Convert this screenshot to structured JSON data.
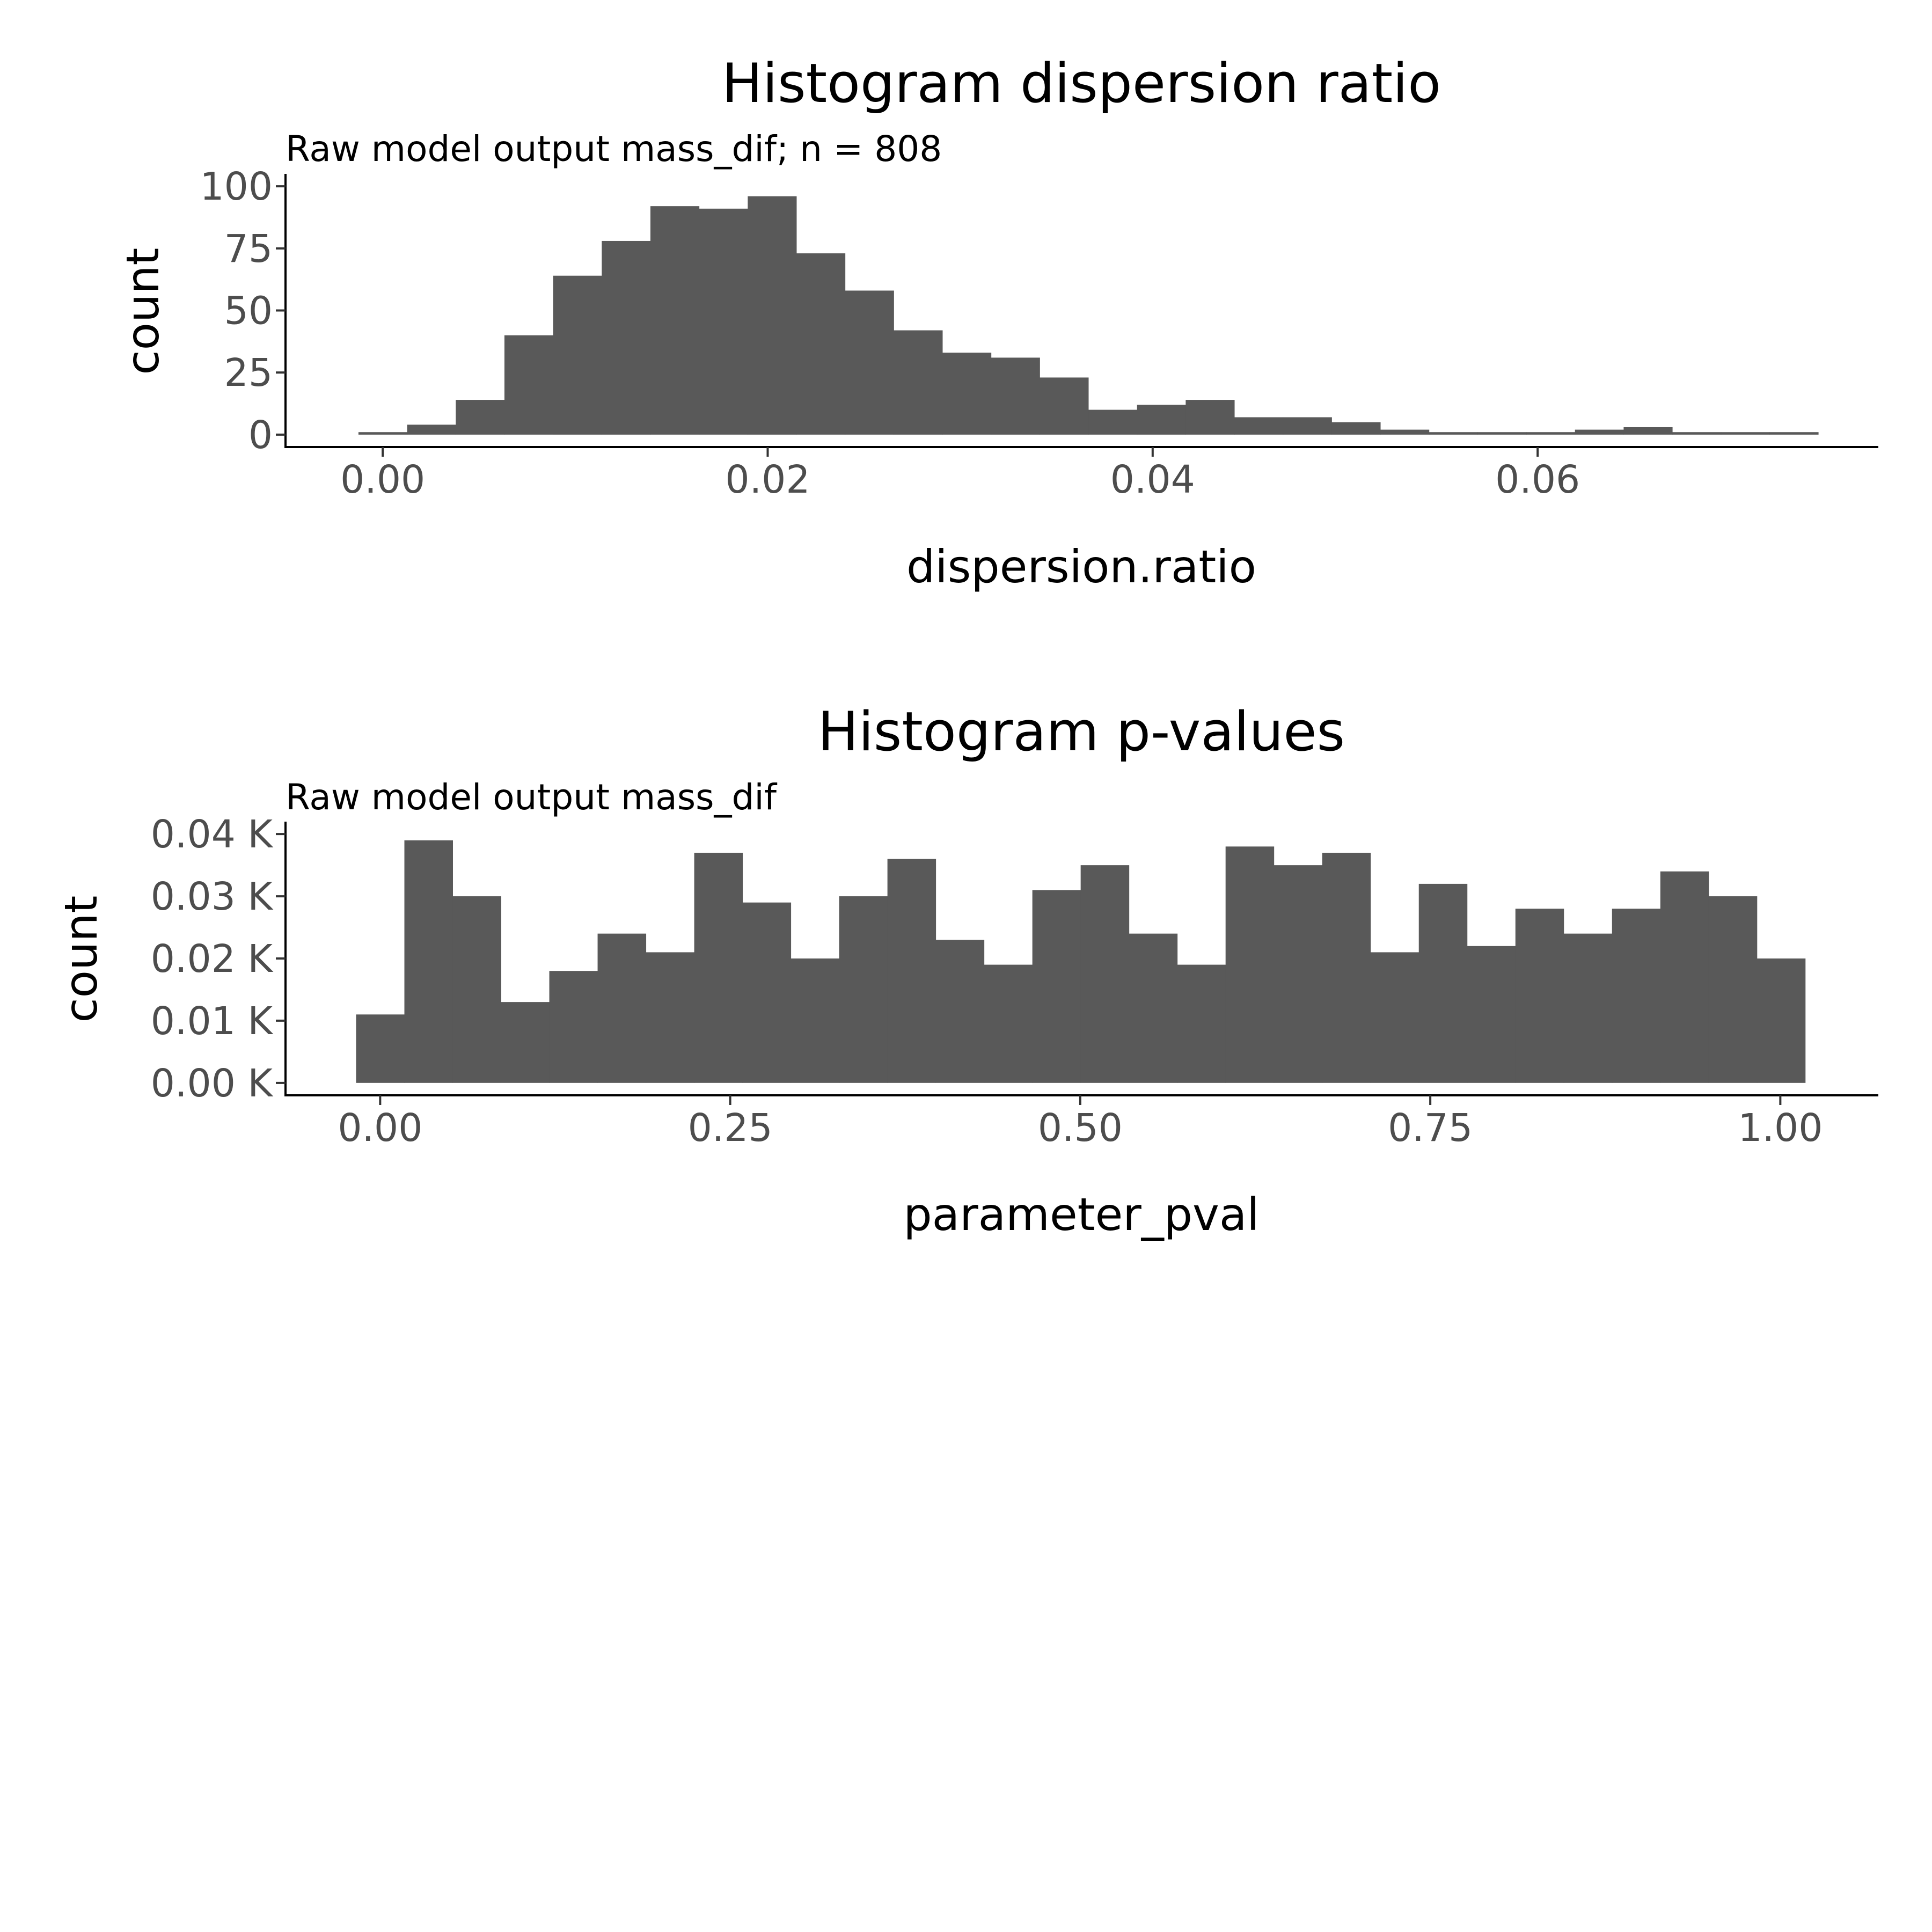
{
  "chart_data": [
    {
      "type": "bar",
      "title": "Histogram dispersion ratio",
      "subtitle": "Raw model output mass_dif; n = 808",
      "xlabel": "dispersion.ratio",
      "ylabel": "count",
      "xlim": [
        -0.00505,
        0.0777
      ],
      "ylim": [
        -5,
        105
      ],
      "xticks": [
        0,
        0.02,
        0.04,
        0.06
      ],
      "xtick_labels": [
        "0.00",
        "0.02",
        "0.04",
        "0.06"
      ],
      "yticks": [
        0,
        25,
        50,
        75,
        100
      ],
      "ytick_labels": [
        "0",
        "25",
        "50",
        "75",
        "100"
      ],
      "bin_start": -0.00126,
      "bin_width": 0.002528,
      "values": [
        1,
        4,
        14,
        40,
        64,
        78,
        92,
        91,
        96,
        73,
        58,
        42,
        33,
        31,
        23,
        10,
        12,
        14,
        7,
        7,
        5,
        2,
        1,
        1,
        1,
        2,
        3,
        1,
        1,
        1
      ],
      "grid": false
    },
    {
      "type": "bar",
      "title": "Histogram p-values",
      "subtitle": "Raw model output mass_dif",
      "xlabel": "parameter_pval",
      "ylabel": "count",
      "xlim": [
        -0.0676,
        1.07
      ],
      "ylim": [
        -0.002,
        0.042
      ],
      "xticks": [
        0,
        0.25,
        0.5,
        0.75,
        1
      ],
      "xtick_labels": [
        "0.00",
        "0.25",
        "0.50",
        "0.75",
        "1.00"
      ],
      "yticks": [
        0,
        0.01,
        0.02,
        0.03,
        0.04
      ],
      "ytick_labels": [
        "0.00 K",
        "0.01 K",
        "0.02 K",
        "0.03 K",
        "0.04 K"
      ],
      "bin_start": -0.0172,
      "bin_width": 0.0345,
      "values": [
        0.011,
        0.039,
        0.03,
        0.013,
        0.018,
        0.024,
        0.021,
        0.037,
        0.029,
        0.02,
        0.03,
        0.036,
        0.023,
        0.019,
        0.031,
        0.035,
        0.024,
        0.019,
        0.038,
        0.035,
        0.037,
        0.021,
        0.032,
        0.022,
        0.028,
        0.024,
        0.028,
        0.034,
        0.03,
        0.02
      ],
      "grid": false
    }
  ]
}
